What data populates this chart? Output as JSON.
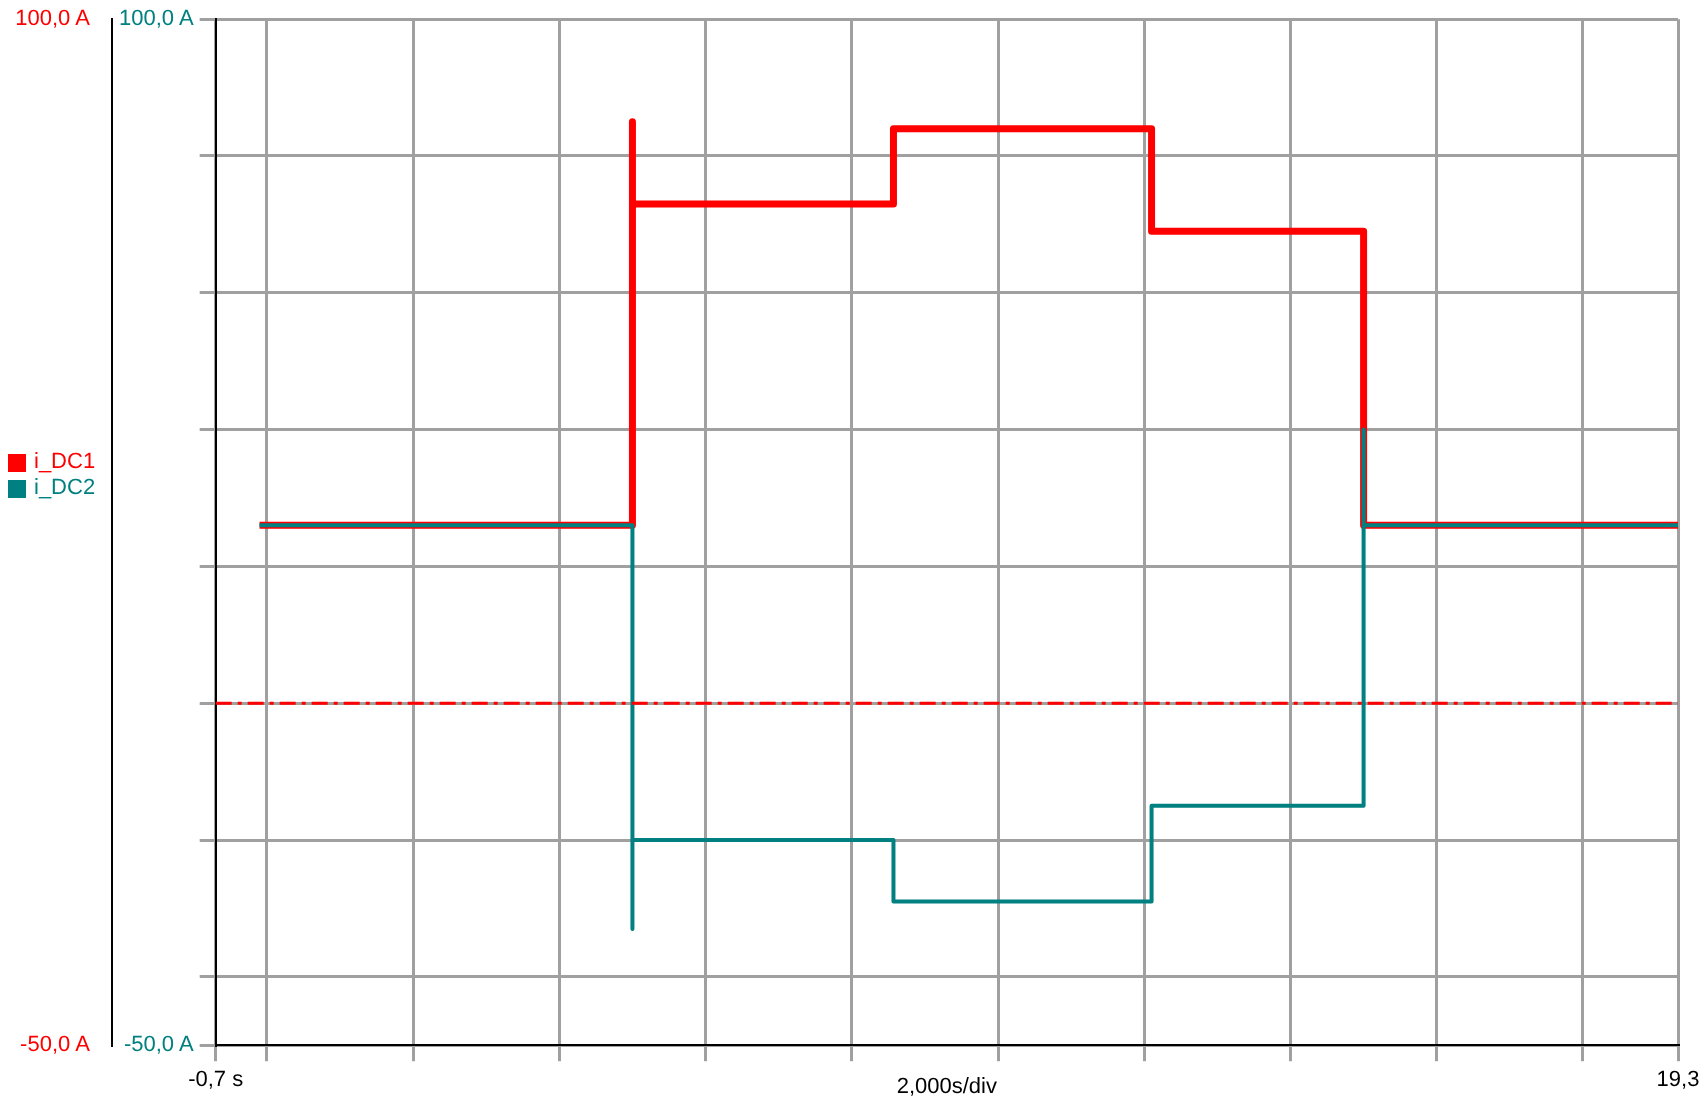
{
  "chart_data": {
    "type": "line",
    "xlabel": "2,000s/div",
    "series": [
      {
        "name": "i_DC1",
        "color": "#ff0000",
        "axis": "y2",
        "x": [
          -0.1,
          5.0,
          5.0,
          5.0,
          8.57,
          8.57,
          12.1,
          12.1,
          15.0,
          15.0,
          19.3
        ],
        "values": [
          26,
          26,
          85,
          73,
          73,
          84,
          84,
          69,
          69,
          26,
          26
        ]
      },
      {
        "name": "i_DC2",
        "color": "#008080",
        "x": [
          -0.1,
          5.0,
          5.0,
          5.0,
          8.57,
          8.57,
          12.1,
          12.1,
          15.0,
          15.0,
          15.0,
          19.3
        ],
        "values": [
          26,
          26,
          -33,
          -20,
          -20,
          -29,
          -29,
          -15,
          -15,
          40,
          26,
          26
        ]
      }
    ],
    "xlim": [
      -0.7,
      19.3
    ],
    "xticks": [
      {
        "value": -0.7,
        "label": "-0,7 s"
      },
      {
        "value": 0,
        "label": null
      },
      {
        "value": 2,
        "label": null
      },
      {
        "value": 4,
        "label": null
      },
      {
        "value": 6,
        "label": null
      },
      {
        "value": 8,
        "label": null
      },
      {
        "value": 10,
        "label": null
      },
      {
        "value": 12,
        "label": null
      },
      {
        "value": 14,
        "label": null
      },
      {
        "value": 16,
        "label": null
      },
      {
        "value": 18,
        "label": null
      },
      {
        "value": 19.3,
        "label": "19,3"
      }
    ],
    "ylim": [
      -50,
      100
    ],
    "yticks": [
      {
        "value": -50,
        "label": "-50,0 A"
      },
      {
        "value": -40,
        "label": null
      },
      {
        "value": -20,
        "label": null
      },
      {
        "value": 0,
        "label": null
      },
      {
        "value": 20,
        "label": null
      },
      {
        "value": 40,
        "label": null
      },
      {
        "value": 60,
        "label": null
      },
      {
        "value": 80,
        "label": null
      },
      {
        "value": 100,
        "label": "100,0 A"
      }
    ],
    "y2lim": [
      -50,
      100
    ],
    "y2ticks": [
      {
        "value": -50,
        "label": "-50,0 A"
      },
      {
        "value": 100,
        "label": "100,0 A"
      }
    ],
    "ref_lines": [
      {
        "axis": "y",
        "value": 0,
        "color": "#ff0000",
        "line_style": "dashed"
      }
    ],
    "grid": true,
    "legend": "left",
    "marker": "none",
    "line_style": "solid"
  }
}
